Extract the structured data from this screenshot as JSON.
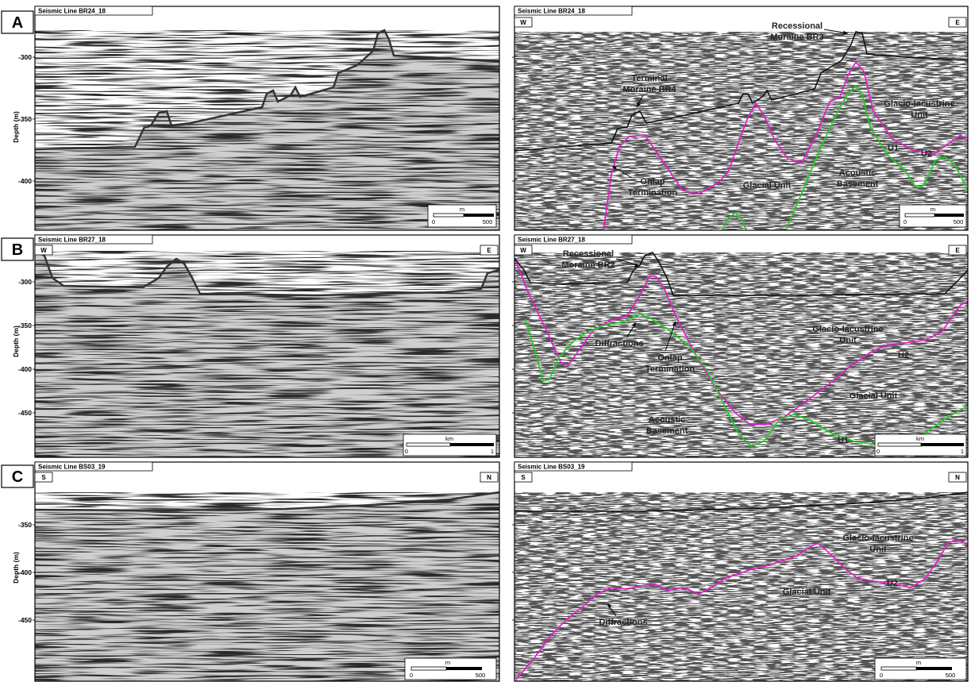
{
  "figure": {
    "rows": [
      {
        "letter": "A",
        "depth_label": "Depth (m)",
        "depth_ticks": [
          "-300",
          "-350",
          "-400"
        ],
        "left": {
          "title": "Seismic Line BR24_18",
          "dir_left": "",
          "dir_right": "",
          "scale_unit": "m",
          "scale_min": "0",
          "scale_max": "500"
        },
        "right": {
          "title": "Seismic Line BR24_18",
          "dir_left": "W",
          "dir_right": "E",
          "scale_unit": "m",
          "scale_min": "0",
          "scale_max": "500"
        },
        "annotations": [
          {
            "lines": [
              "Recessional",
              "Moraine BR3"
            ]
          },
          {
            "lines": [
              "Terminal",
              "Moraine BR4"
            ]
          },
          {
            "lines": [
              "Glacio-lacustrine",
              "Unit"
            ]
          },
          {
            "lines": [
              "U1"
            ]
          },
          {
            "lines": [
              "U2"
            ]
          },
          {
            "lines": [
              "Onlap",
              "Termination"
            ]
          },
          {
            "lines": [
              "Glacial Unit"
            ]
          },
          {
            "lines": [
              "Acoustic",
              "Basement"
            ]
          }
        ]
      },
      {
        "letter": "B",
        "depth_label": "Depth (m)",
        "depth_ticks": [
          "-300",
          "-350",
          "-400",
          "-450"
        ],
        "left": {
          "title": "Seismic Line BR27_18",
          "dir_left": "W",
          "dir_right": "E",
          "scale_unit": "km",
          "scale_min": "0",
          "scale_max": "1"
        },
        "right": {
          "title": "Seismic Line BR27_18",
          "dir_left": "W",
          "dir_right": "E",
          "scale_unit": "km",
          "scale_min": "0",
          "scale_max": "1"
        },
        "annotations": [
          {
            "lines": [
              "Recessional",
              "Moraine BR2"
            ]
          },
          {
            "lines": [
              "Glacio-lacustrine",
              "Unit"
            ]
          },
          {
            "lines": [
              "Diffractions"
            ]
          },
          {
            "lines": [
              "Onlap",
              "Termination"
            ]
          },
          {
            "lines": [
              "U2"
            ]
          },
          {
            "lines": [
              "Glacial Unit"
            ]
          },
          {
            "lines": [
              "Acoustic",
              "Basement"
            ]
          },
          {
            "lines": [
              "U1"
            ]
          }
        ]
      },
      {
        "letter": "C",
        "depth_label": "Depth (m)",
        "depth_ticks": [
          "-350",
          "-400",
          "-450"
        ],
        "left": {
          "title": "Seismic Line BS03_19",
          "dir_left": "S",
          "dir_right": "N",
          "scale_unit": "m",
          "scale_min": "0",
          "scale_max": "500"
        },
        "right": {
          "title": "Seismic Line BS03_19",
          "dir_left": "S",
          "dir_right": "N",
          "scale_unit": "m",
          "scale_min": "0",
          "scale_max": "500"
        },
        "annotations": [
          {
            "lines": [
              "Glacio-lacustrine",
              "Unit"
            ]
          },
          {
            "lines": [
              "Glacial Unit"
            ]
          },
          {
            "lines": [
              "U2"
            ]
          },
          {
            "lines": [
              "Diffractions"
            ]
          }
        ]
      }
    ],
    "colors": {
      "u1_horizon": "#22cc22",
      "u2_horizon": "#e020c8",
      "seafloor": "#111111",
      "panel_border": "#000000"
    }
  }
}
